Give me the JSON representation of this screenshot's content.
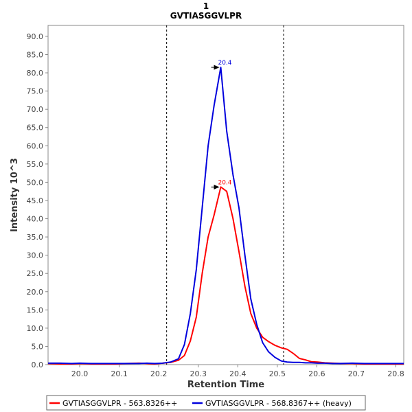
{
  "chart_data": {
    "type": "line",
    "title": "1",
    "subtitle": "GVTIASGGVLPR",
    "xlabel": "Retention Time",
    "ylabel": "Intensity 10^3",
    "xlim": [
      19.92,
      20.82
    ],
    "ylim": [
      0,
      93
    ],
    "x_ticks": [
      "20.0",
      "20.1",
      "20.2",
      "20.3",
      "20.4",
      "20.5",
      "20.6",
      "20.7",
      "20.8"
    ],
    "y_ticks": [
      "0.0",
      "5.0",
      "10.0",
      "15.0",
      "20.0",
      "25.0",
      "30.0",
      "35.0",
      "40.0",
      "45.0",
      "50.0",
      "55.0",
      "60.0",
      "65.0",
      "70.0",
      "75.0",
      "80.0",
      "85.0",
      "90.0"
    ],
    "grid": false,
    "boundaries": [
      20.22,
      20.516
    ],
    "legend_position": "bottom",
    "series": [
      {
        "name": "GVTIASGGVLPR - 563.8326++",
        "color": "#ff0000",
        "peak_label": "20.4",
        "peak": [
          20.357,
          48.7
        ],
        "x": [
          19.92,
          19.95,
          19.98,
          20.0,
          20.03,
          20.06,
          20.09,
          20.12,
          20.15,
          20.17,
          20.19,
          20.21,
          20.23,
          20.25,
          20.265,
          20.28,
          20.295,
          20.31,
          20.325,
          20.34,
          20.357,
          20.372,
          20.388,
          20.403,
          20.418,
          20.433,
          20.448,
          20.463,
          20.478,
          20.494,
          20.51,
          20.525,
          20.54,
          20.556,
          20.571,
          20.586,
          20.602,
          20.62,
          20.64,
          20.66,
          20.69,
          20.72,
          20.76,
          20.8,
          20.82
        ],
        "values": [
          0.3,
          0.2,
          0.2,
          0.3,
          0.2,
          0.2,
          0.2,
          0.3,
          0.4,
          0.3,
          0.2,
          0.4,
          0.6,
          1.2,
          2.5,
          6.5,
          13,
          25,
          35,
          41,
          48.7,
          47.5,
          40,
          31,
          21.5,
          14,
          10,
          7.5,
          6.3,
          5.3,
          4.6,
          4.2,
          3.1,
          1.7,
          1.3,
          0.8,
          0.7,
          0.5,
          0.4,
          0.3,
          0.3,
          0.2,
          0.2,
          0.2,
          0.2
        ]
      },
      {
        "name": "GVTIASGGVLPR - 568.8367++ (heavy)",
        "color": "#0000dd",
        "peak_label": "20.4",
        "peak": [
          20.357,
          81.5
        ],
        "x": [
          19.92,
          19.95,
          19.98,
          20.0,
          20.03,
          20.06,
          20.09,
          20.12,
          20.15,
          20.17,
          20.19,
          20.21,
          20.23,
          20.25,
          20.265,
          20.28,
          20.295,
          20.31,
          20.325,
          20.34,
          20.357,
          20.372,
          20.388,
          20.403,
          20.418,
          20.433,
          20.448,
          20.463,
          20.478,
          20.494,
          20.51,
          20.525,
          20.54,
          20.556,
          20.571,
          20.586,
          20.602,
          20.62,
          20.64,
          20.66,
          20.69,
          20.72,
          20.76,
          20.8,
          20.82
        ],
        "values": [
          0.4,
          0.4,
          0.3,
          0.4,
          0.3,
          0.3,
          0.3,
          0.3,
          0.3,
          0.4,
          0.3,
          0.4,
          0.7,
          1.6,
          5.5,
          14,
          26,
          43,
          60,
          71,
          81.5,
          64,
          52,
          43,
          30,
          18,
          11,
          6,
          3.5,
          2,
          1,
          0.7,
          0.6,
          0.6,
          0.5,
          0.5,
          0.4,
          0.4,
          0.3,
          0.3,
          0.4,
          0.3,
          0.3,
          0.3,
          0.3
        ]
      }
    ]
  }
}
